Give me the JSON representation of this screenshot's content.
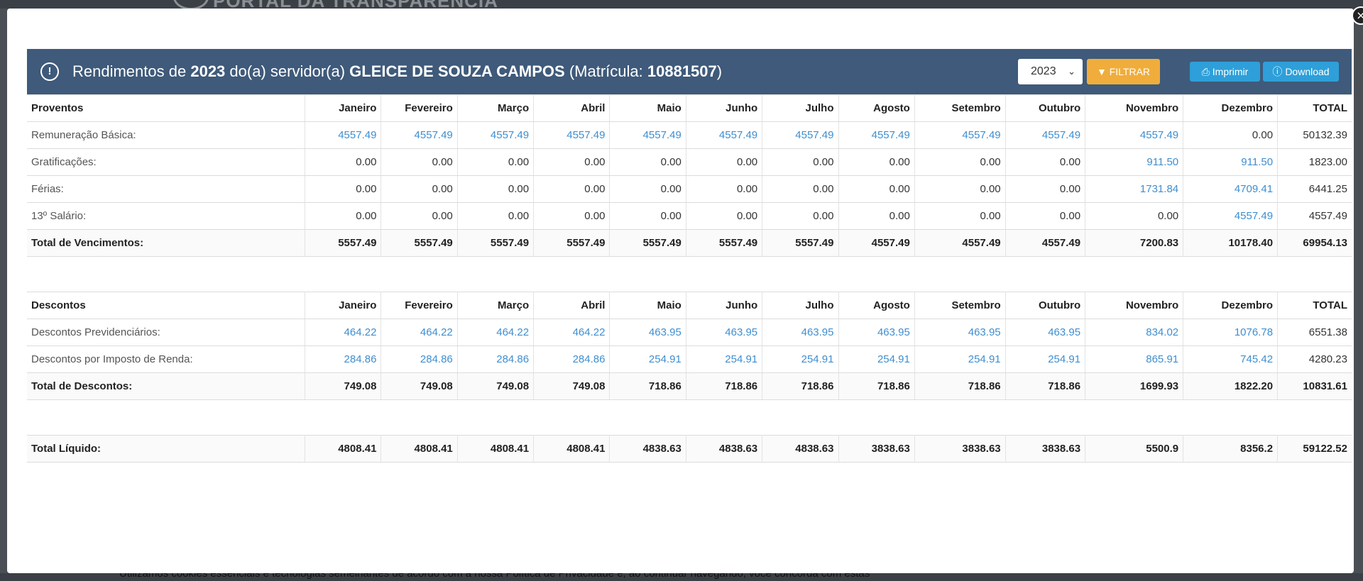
{
  "background": {
    "header_text": "PORTAL DA TRANSPARÊNCIA",
    "cookie_text": "Utilizamos cookies essenciais e tecnologias semelhantes de acordo com a nossa Política de Privacidade e, ao continuar navegando, você concorda com estas"
  },
  "modal": {
    "close_symbol": "×",
    "title": {
      "prefix": "Rendimentos de",
      "year": "2023",
      "middle": "do(a) servidor(a)",
      "name": "GLEICE DE SOUZA CAMPOS",
      "mat_prefix": "(Matrícula:",
      "matricula": "10881507",
      "mat_suffix": ")"
    },
    "year_select": "2023",
    "filter_label": "FILTRAR",
    "print_label": "Imprimir",
    "download_label": "Download"
  },
  "months": [
    "Janeiro",
    "Fevereiro",
    "Março",
    "Abril",
    "Maio",
    "Junho",
    "Julho",
    "Agosto",
    "Setembro",
    "Outubro",
    "Novembro",
    "Dezembro",
    "TOTAL"
  ],
  "proventos": {
    "header": "Proventos",
    "rows": [
      {
        "label": "Remuneração Básica:",
        "values": [
          "4557.49",
          "4557.49",
          "4557.49",
          "4557.49",
          "4557.49",
          "4557.49",
          "4557.49",
          "4557.49",
          "4557.49",
          "4557.49",
          "4557.49",
          "0.00",
          "50132.39"
        ]
      },
      {
        "label": "Gratificações:",
        "values": [
          "0.00",
          "0.00",
          "0.00",
          "0.00",
          "0.00",
          "0.00",
          "0.00",
          "0.00",
          "0.00",
          "0.00",
          "911.50",
          "911.50",
          "1823.00"
        ]
      },
      {
        "label": "Férias:",
        "values": [
          "0.00",
          "0.00",
          "0.00",
          "0.00",
          "0.00",
          "0.00",
          "0.00",
          "0.00",
          "0.00",
          "0.00",
          "1731.84",
          "4709.41",
          "6441.25"
        ]
      },
      {
        "label": "13º Salário:",
        "values": [
          "0.00",
          "0.00",
          "0.00",
          "0.00",
          "0.00",
          "0.00",
          "0.00",
          "0.00",
          "0.00",
          "0.00",
          "0.00",
          "4557.49",
          "4557.49"
        ]
      }
    ],
    "total": {
      "label": "Total de Vencimentos:",
      "values": [
        "5557.49",
        "5557.49",
        "5557.49",
        "5557.49",
        "5557.49",
        "5557.49",
        "5557.49",
        "4557.49",
        "4557.49",
        "4557.49",
        "7200.83",
        "10178.40",
        "69954.13"
      ]
    }
  },
  "descontos": {
    "header": "Descontos",
    "rows": [
      {
        "label": "Descontos Previdenciários:",
        "values": [
          "464.22",
          "464.22",
          "464.22",
          "464.22",
          "463.95",
          "463.95",
          "463.95",
          "463.95",
          "463.95",
          "463.95",
          "834.02",
          "1076.78",
          "6551.38"
        ]
      },
      {
        "label": "Descontos por Imposto de Renda:",
        "values": [
          "284.86",
          "284.86",
          "284.86",
          "284.86",
          "254.91",
          "254.91",
          "254.91",
          "254.91",
          "254.91",
          "254.91",
          "865.91",
          "745.42",
          "4280.23"
        ]
      }
    ],
    "total": {
      "label": "Total de Descontos:",
      "values": [
        "749.08",
        "749.08",
        "749.08",
        "749.08",
        "718.86",
        "718.86",
        "718.86",
        "718.86",
        "718.86",
        "718.86",
        "1699.93",
        "1822.20",
        "10831.61"
      ]
    }
  },
  "liquido": {
    "label": "Total Líquido:",
    "values": [
      "4808.41",
      "4808.41",
      "4808.41",
      "4808.41",
      "4838.63",
      "4838.63",
      "4838.63",
      "3838.63",
      "3838.63",
      "3838.63",
      "5500.9",
      "8356.2",
      "59122.52"
    ]
  },
  "colors": {
    "header_bg": "#3f5a7a",
    "filter_bg": "#f0ad3c",
    "button_blue": "#2e9fd8",
    "link": "#3e8ed0"
  }
}
